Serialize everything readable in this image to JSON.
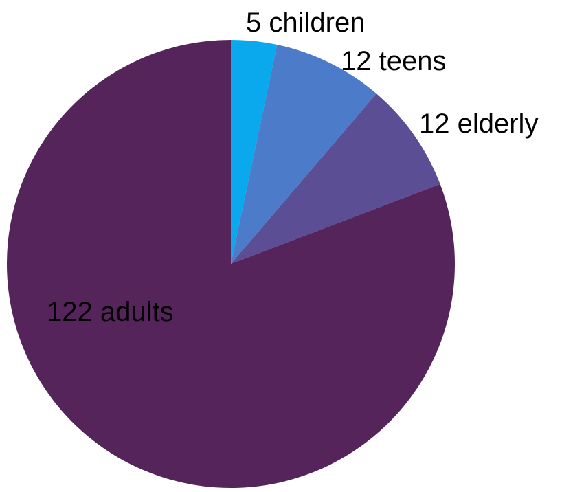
{
  "chart_data": {
    "type": "pie",
    "title": "",
    "start_angle": "12 o'clock",
    "direction": "clockwise",
    "label_color": "#000000",
    "slices": [
      {
        "label": "5 children",
        "value": 5,
        "color": "#0aa8ec"
      },
      {
        "label": "12 teens",
        "value": 12,
        "color": "#4b7bc9"
      },
      {
        "label": "12 elderly",
        "value": 12,
        "color": "#5c4e94"
      },
      {
        "label": "122 adults",
        "value": 122,
        "color": "#55245b"
      }
    ]
  }
}
